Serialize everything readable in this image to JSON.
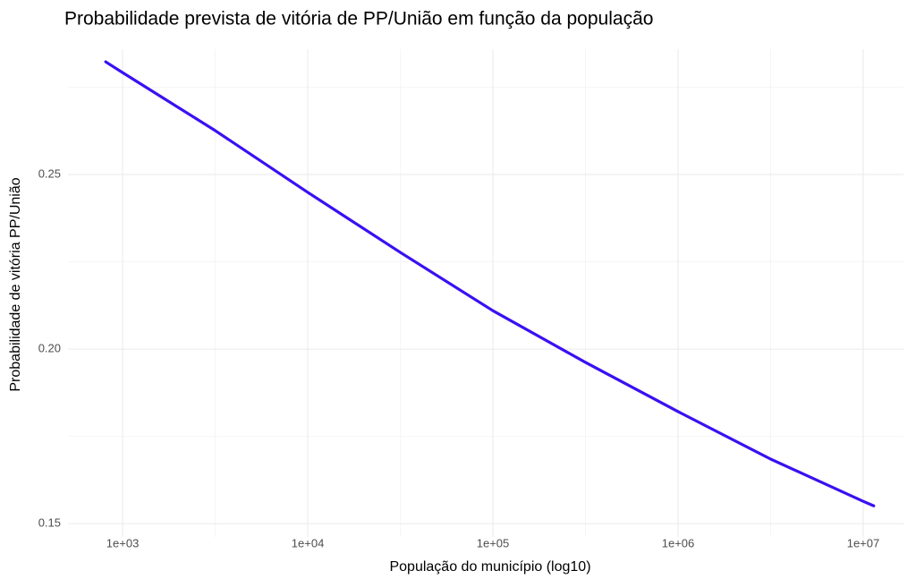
{
  "chart_data": {
    "type": "line",
    "title": "Probabilidade prevista de vitória de PP/União em função da população",
    "x_label": "População do município (log10)",
    "y_label": "Probabilidade de vitória PP/União",
    "x": [
      810,
      1000,
      3162,
      10000,
      31623,
      100000,
      316228,
      1000000,
      3162278,
      10000000,
      11400000
    ],
    "series": [
      {
        "name": "PP/União",
        "color": "#3a10f2",
        "values": [
          0.2823,
          0.2792,
          0.2626,
          0.2449,
          0.2277,
          0.211,
          0.1962,
          0.1821,
          0.1685,
          0.1564,
          0.1551
        ]
      }
    ],
    "x_log": true,
    "xlim": [
      507,
      16500000
    ],
    "xticks": [
      {
        "value": 1000,
        "label": "1e+03"
      },
      {
        "value": 10000,
        "label": "1e+04"
      },
      {
        "value": 100000,
        "label": "1e+05"
      },
      {
        "value": 1000000,
        "label": "1e+06"
      },
      {
        "value": 10000000,
        "label": "1e+07"
      }
    ],
    "x_minor_ticks": [
      3162,
      31623,
      316228,
      3162278
    ],
    "ylim": [
      0.1462,
      0.2859
    ],
    "yticks": [
      0.15,
      {
        "value": 0.2,
        "label": "0.20"
      },
      0.25
    ],
    "y_minor_ticks": [
      0.175,
      0.225,
      0.275
    ],
    "grid": true
  }
}
